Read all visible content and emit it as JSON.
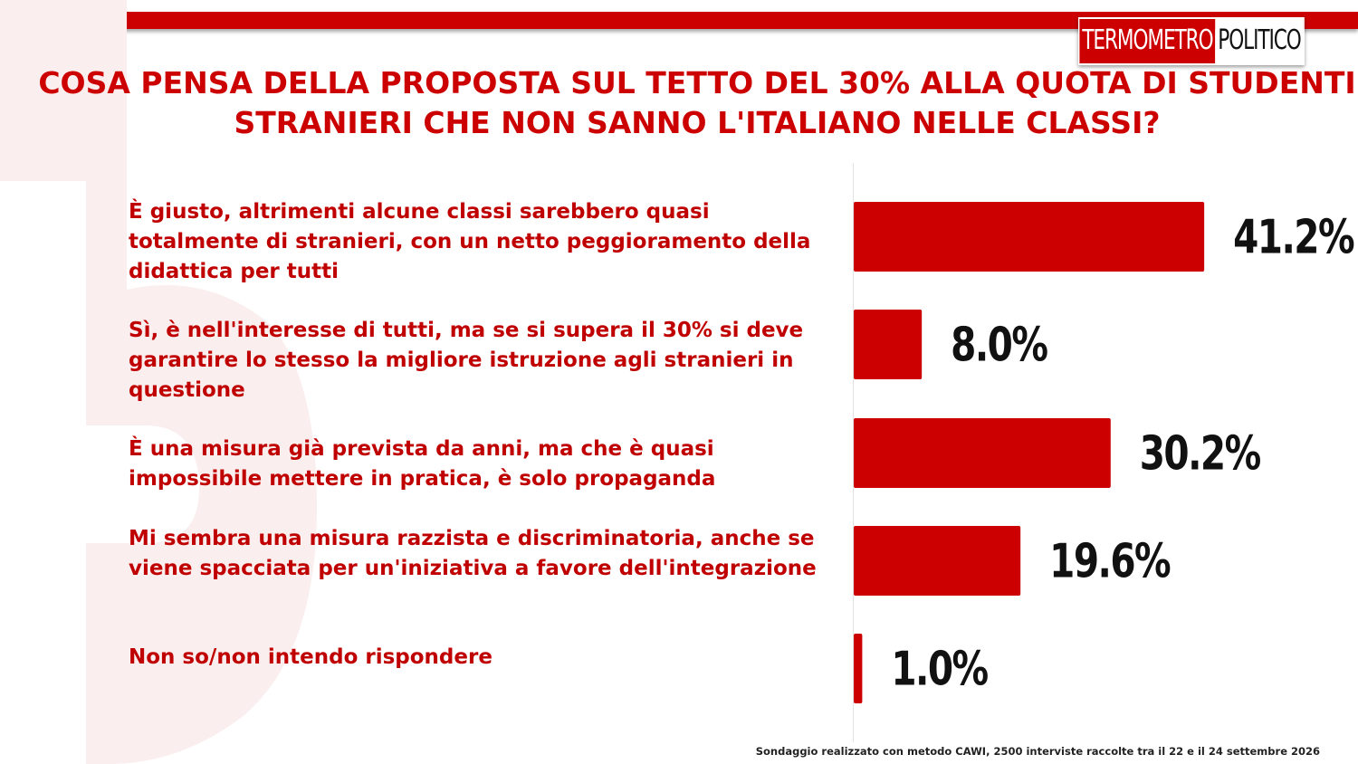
{
  "header": {
    "logo_left": "TERMOMETRO",
    "logo_right": "POLITICO",
    "brand_color": "#cc0000"
  },
  "chart_data": {
    "type": "bar",
    "orientation": "horizontal",
    "title": "COSA PENSA DELLA PROPOSTA SUL TETTO DEL 30% ALLA QUOTA DI STUDENTI STRANIERI CHE NON SANNO L'ITALIANO NELLE CLASSI?",
    "categories": [
      "È giusto, altrimenti alcune classi sarebbero quasi totalmente di stranieri, con un netto peggioramento della didattica per tutti",
      "Sì, è nell'interesse di tutti, ma se si supera il 30% si deve garantire lo stesso la migliore istruzione agli stranieri in questione",
      "È una misura già  prevista da anni, ma che è quasi impossibile mettere in pratica, è solo propaganda",
      "Mi sembra una misura razzista e discriminatoria, anche se viene spacciata per un'iniziativa a favore dell'integrazione",
      "Non so/non intendo rispondere"
    ],
    "values": [
      41.2,
      8.0,
      30.2,
      19.6,
      1.0
    ],
    "value_labels": [
      "41.2%",
      "8.0%",
      "30.2%",
      "19.6%",
      "1.0%"
    ],
    "bar_color": "#cc0000",
    "xlim": [
      0,
      58
    ],
    "grid": false,
    "legend": "none"
  },
  "footnote": "Sondaggio realizzato con metodo CAWI, 2500 interviste raccolte tra il 22 e il 24  settembre  2026"
}
